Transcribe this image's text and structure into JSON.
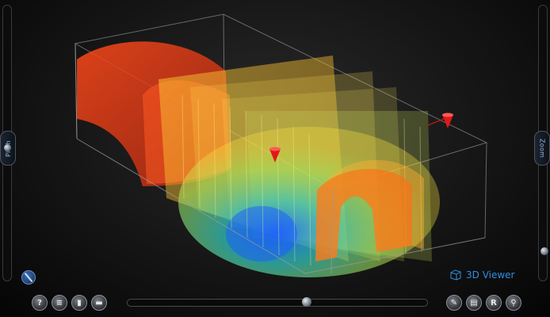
{
  "viewer": {
    "brand_label": "3D Viewer",
    "pitch_label": "Pitch",
    "zoom_label": "Zoom",
    "buttons_left": [
      {
        "icon": "help-icon",
        "glyph": "?"
      },
      {
        "icon": "layers-icon",
        "glyph": "≡"
      },
      {
        "icon": "page-icon",
        "glyph": "▮"
      },
      {
        "icon": "window-icon",
        "glyph": "▬"
      }
    ],
    "buttons_right": [
      {
        "icon": "wrench-icon",
        "glyph": "✎"
      },
      {
        "icon": "document-icon",
        "glyph": "▤"
      },
      {
        "icon": "reset-icon",
        "glyph": "R"
      },
      {
        "icon": "search-icon",
        "glyph": "⚲"
      }
    ],
    "timeline_position": 0.6,
    "colors": {
      "accent": "#2f8fe0",
      "background": "#151515",
      "marker": "#e01818"
    }
  }
}
